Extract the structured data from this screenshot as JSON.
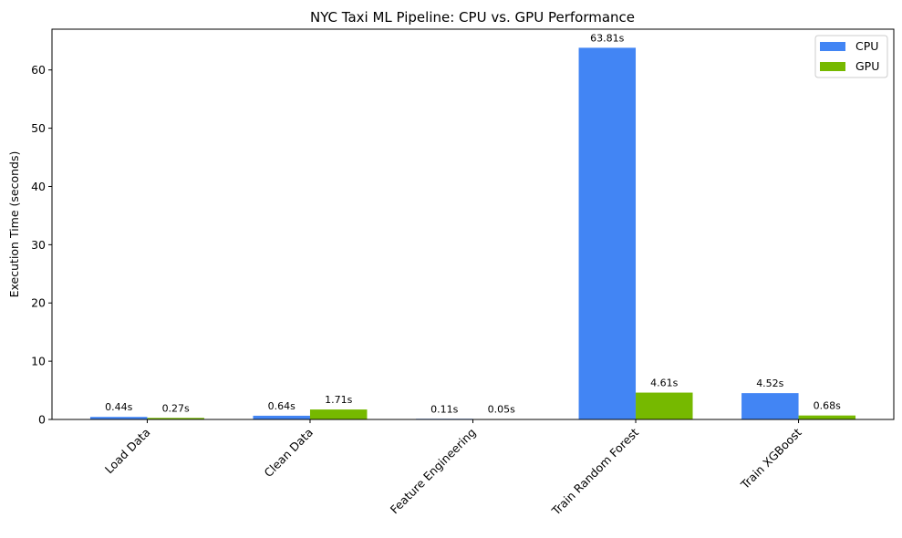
{
  "chart_data": {
    "type": "bar",
    "title": "NYC Taxi ML Pipeline: CPU vs. GPU Performance",
    "xlabel": "",
    "ylabel": "Execution Time (seconds)",
    "categories": [
      "Load Data",
      "Clean Data",
      "Feature Engineering",
      "Train Random Forest",
      "Train XGBoost"
    ],
    "series": [
      {
        "name": "CPU",
        "color": "#4285F4",
        "values": [
          0.44,
          0.64,
          0.11,
          63.81,
          4.52
        ],
        "labels": [
          "0.44s",
          "0.64s",
          "0.11s",
          "63.81s",
          "4.52s"
        ]
      },
      {
        "name": "GPU",
        "color": "#76B900",
        "values": [
          0.27,
          1.71,
          0.05,
          4.61,
          0.68
        ],
        "labels": [
          "0.27s",
          "1.71s",
          "0.05s",
          "4.61s",
          "0.68s"
        ]
      }
    ],
    "ylim": [
      0,
      67
    ],
    "yticks": [
      0,
      10,
      20,
      30,
      40,
      50,
      60
    ],
    "grid": false,
    "legend": "top-right"
  }
}
